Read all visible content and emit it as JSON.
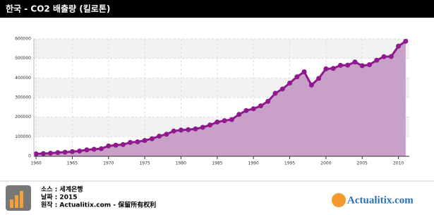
{
  "chart_data": {
    "type": "area",
    "title": "한국 - CO2 배출량 (킬로톤)",
    "x": [
      1960,
      1961,
      1962,
      1963,
      1964,
      1965,
      1966,
      1967,
      1968,
      1969,
      1970,
      1971,
      1972,
      1973,
      1974,
      1975,
      1976,
      1977,
      1978,
      1979,
      1980,
      1981,
      1982,
      1983,
      1984,
      1985,
      1986,
      1987,
      1988,
      1989,
      1990,
      1991,
      1992,
      1993,
      1994,
      1995,
      1996,
      1997,
      1998,
      1999,
      2000,
      2001,
      2002,
      2003,
      2004,
      2005,
      2006,
      2007,
      2008,
      2009,
      2010,
      2011
    ],
    "values": [
      12570,
      14000,
      16000,
      19000,
      21000,
      24000,
      27000,
      33000,
      36000,
      39000,
      53000,
      57000,
      60000,
      71000,
      74000,
      81000,
      90000,
      103000,
      113000,
      129000,
      134000,
      136000,
      140000,
      148000,
      160000,
      175000,
      182000,
      188000,
      214000,
      234000,
      243000,
      258000,
      281000,
      322000,
      344000,
      374000,
      406000,
      432000,
      364000,
      398000,
      447000,
      449000,
      465000,
      466000,
      482000,
      463000,
      468000,
      491000,
      509000,
      510000,
      563000,
      588000
    ],
    "color": "#8e1a8e",
    "fill_color": "#c9a0c8",
    "xlim": [
      1959.7,
      2011.5
    ],
    "xticks": [
      1960,
      1965,
      1970,
      1975,
      1980,
      1985,
      1990,
      1995,
      2000,
      2005,
      2010
    ],
    "ylim": [
      0,
      600000
    ],
    "yticks": [
      0,
      100000,
      200000,
      300000,
      400000,
      500000,
      600000
    ],
    "grid": true
  },
  "footer": {
    "source": "소스 : 세계은행",
    "date": "날짜 : 2015",
    "origin": "원작 : Actualitix.com - 保留所有权利",
    "logo": "Actualitix.com"
  }
}
